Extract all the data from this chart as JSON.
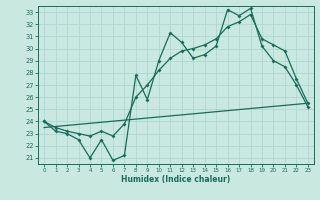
{
  "title": "",
  "xlabel": "Humidex (Indice chaleur)",
  "bg_color": "#c8e8e0",
  "line_color": "#1a6b5a",
  "grid_color": "#b0d8d0",
  "xlim": [
    -0.5,
    23.5
  ],
  "ylim": [
    20.5,
    33.5
  ],
  "yticks": [
    21,
    22,
    23,
    24,
    25,
    26,
    27,
    28,
    29,
    30,
    31,
    32,
    33
  ],
  "xticks": [
    0,
    1,
    2,
    3,
    4,
    5,
    6,
    7,
    8,
    9,
    10,
    11,
    12,
    13,
    14,
    15,
    16,
    17,
    18,
    19,
    20,
    21,
    22,
    23
  ],
  "raw_x": [
    0,
    1,
    2,
    3,
    4,
    5,
    6,
    7,
    8,
    9,
    10,
    11,
    12,
    13,
    14,
    15,
    16,
    17,
    18,
    19,
    20,
    21,
    22,
    23
  ],
  "raw_y": [
    24.0,
    23.2,
    23.0,
    22.5,
    21.0,
    22.5,
    20.8,
    21.2,
    27.8,
    25.8,
    29.0,
    31.3,
    30.5,
    29.2,
    29.5,
    30.2,
    33.2,
    32.7,
    33.3,
    30.2,
    29.0,
    28.5,
    27.0,
    25.2
  ],
  "smooth_x": [
    0,
    1,
    2,
    3,
    4,
    5,
    6,
    7,
    8,
    9,
    10,
    11,
    12,
    13,
    14,
    15,
    16,
    17,
    18,
    19,
    20,
    21,
    22,
    23
  ],
  "smooth_y": [
    24.0,
    23.5,
    23.2,
    23.0,
    22.8,
    23.2,
    22.8,
    23.8,
    26.0,
    27.0,
    28.2,
    29.2,
    29.8,
    30.0,
    30.3,
    30.8,
    31.8,
    32.2,
    32.8,
    30.8,
    30.3,
    29.8,
    27.5,
    25.5
  ],
  "trend_x": [
    0,
    23
  ],
  "trend_y": [
    23.5,
    25.5
  ]
}
